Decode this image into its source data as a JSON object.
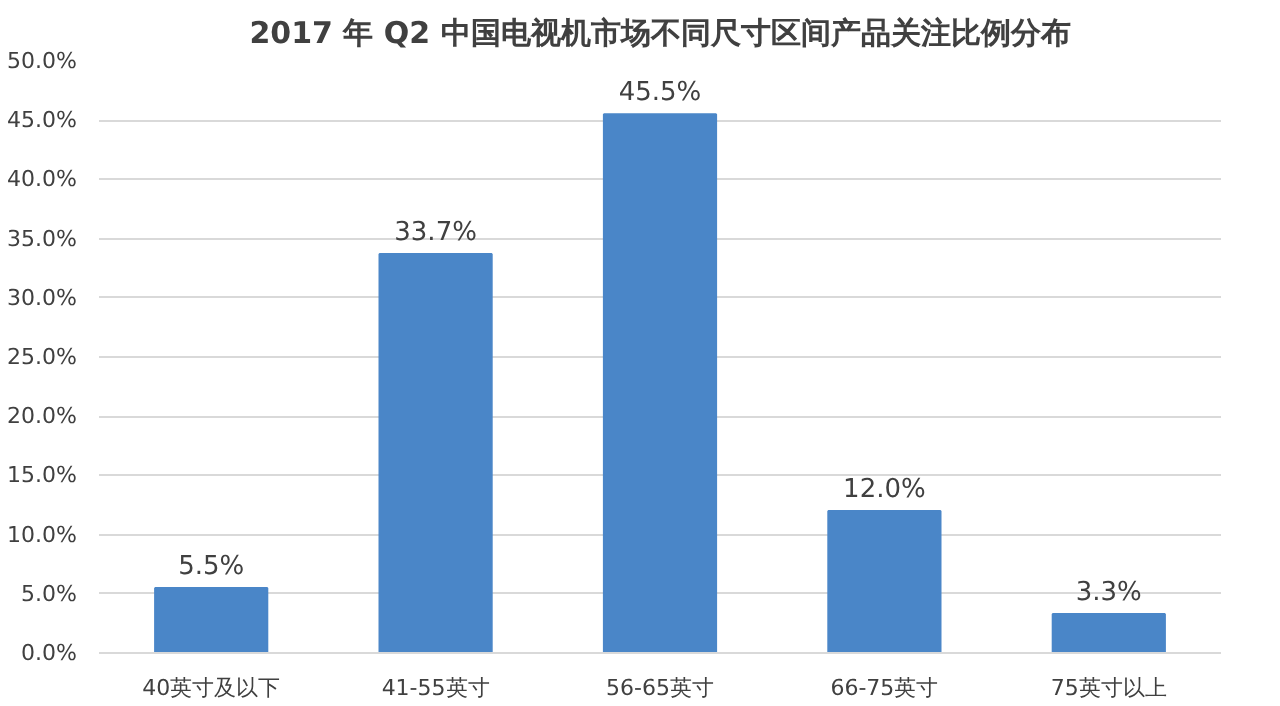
{
  "chart_data": {
    "type": "bar",
    "title": "2017 年 Q2 中国电视机市场不同尺寸区间产品关注比例分布",
    "categories": [
      "40英寸及以下",
      "41-55英寸",
      "56-65英寸",
      "66-75英寸",
      "75英寸以上"
    ],
    "values": [
      5.5,
      33.7,
      45.5,
      12.0,
      3.3
    ],
    "value_labels": [
      "5.5%",
      "33.7%",
      "45.5%",
      "12.0%",
      "3.3%"
    ],
    "color": "#4a86c8",
    "ylim": [
      0,
      50
    ],
    "yticks": [
      {
        "value": 0,
        "label": "0.0%"
      },
      {
        "value": 5,
        "label": "5.0%"
      },
      {
        "value": 10,
        "label": "10.0%"
      },
      {
        "value": 15,
        "label": "15.0%"
      },
      {
        "value": 20,
        "label": "20.0%"
      },
      {
        "value": 25,
        "label": "25.0%"
      },
      {
        "value": 30,
        "label": "30.0%"
      },
      {
        "value": 35,
        "label": "35.0%"
      },
      {
        "value": 40,
        "label": "40.0%"
      },
      {
        "value": 45,
        "label": "45.0%"
      },
      {
        "value": 50,
        "label": "50.0%"
      }
    ],
    "grid": "y"
  }
}
